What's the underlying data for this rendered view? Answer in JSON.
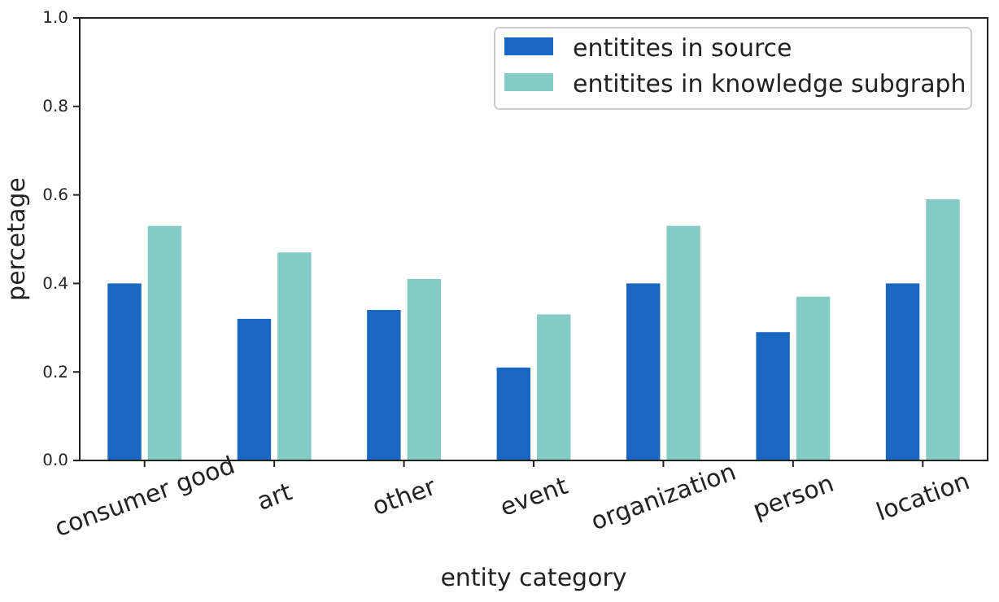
{
  "chart_data": {
    "type": "bar",
    "xlabel": "entity category",
    "ylabel": "percetage",
    "categories": [
      "consumer good",
      "art",
      "other",
      "event",
      "organization",
      "person",
      "location"
    ],
    "series": [
      {
        "name": "entitites in source",
        "color": "#1a67c2",
        "values": [
          0.4,
          0.32,
          0.34,
          0.21,
          0.4,
          0.29,
          0.4
        ]
      },
      {
        "name": "entitites in knowledge subgraph",
        "color": "#83cbc4",
        "values": [
          0.53,
          0.47,
          0.41,
          0.33,
          0.53,
          0.37,
          0.59
        ]
      }
    ],
    "ylim": [
      0,
      1
    ],
    "yticks": [
      {
        "value": 0,
        "label": "0.0"
      },
      {
        "value": 0.2,
        "label": "0.2"
      },
      {
        "value": 0.4,
        "label": "0.4"
      },
      {
        "value": 0.6,
        "label": "0.6"
      },
      {
        "value": 0.8,
        "label": "0.8"
      },
      {
        "value": 1,
        "label": "1.0"
      }
    ],
    "legend": "top right"
  }
}
